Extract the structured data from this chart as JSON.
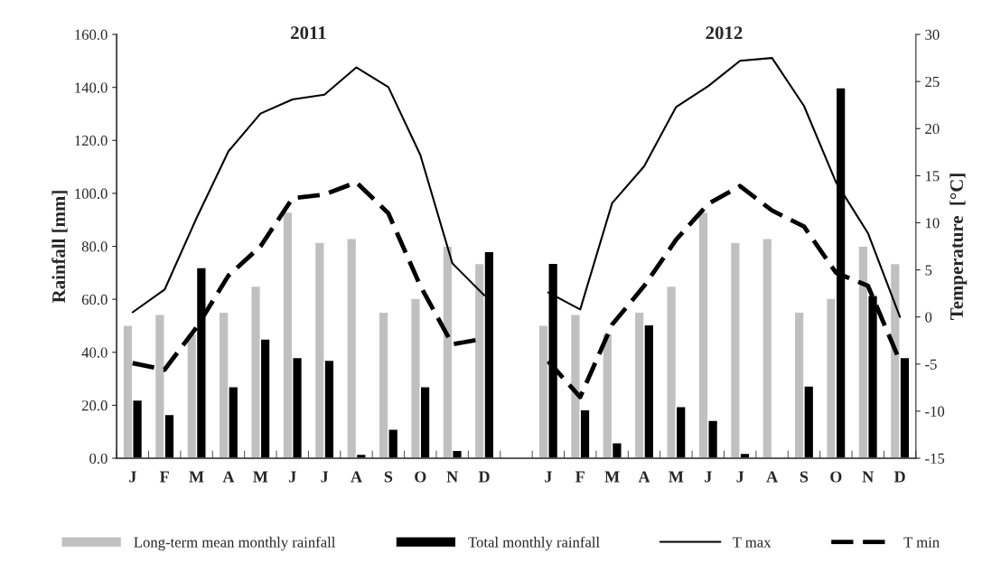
{
  "chart_data": {
    "type": "bar",
    "categories": [
      "J",
      "F",
      "M",
      "A",
      "M",
      "J",
      "J",
      "A",
      "S",
      "O",
      "N",
      "D",
      null,
      "J",
      "F",
      "M",
      "A",
      "M",
      "J",
      "J",
      "A",
      "S",
      "O",
      "N",
      "D"
    ],
    "ylabel": "Rainfall [mm]",
    "y2label": "Temperature  [°C]",
    "annotations": [
      "2011",
      "2012"
    ],
    "ylim": [
      0,
      160
    ],
    "yticks": [
      {
        "value": 0,
        "label": "0.0"
      },
      {
        "value": 20,
        "label": "20.0"
      },
      {
        "value": 40,
        "label": "40.0"
      },
      {
        "value": 60,
        "label": "60.0"
      },
      {
        "value": 80,
        "label": "80.0"
      },
      {
        "value": 100,
        "label": "100.0"
      },
      {
        "value": 120,
        "label": "120.0"
      },
      {
        "value": 140,
        "label": "140.0"
      },
      {
        "value": 160,
        "label": "160.0"
      }
    ],
    "y2lim": [
      -15,
      30
    ],
    "y2ticks": [
      -15,
      -10,
      -5,
      0,
      5,
      10,
      15,
      20,
      25,
      30
    ],
    "grid": false,
    "legend": "bottom",
    "series": [
      {
        "name": "Long-term mean monthly rainfall",
        "color": "#c0c0c0",
        "values": [
          50.2,
          54.3,
          47,
          55.2,
          65.0,
          93.0,
          81.5,
          83.0,
          55.2,
          60.4,
          80.1,
          73.5,
          null,
          50.2,
          54.3,
          47,
          55.2,
          65.0,
          93.0,
          81.5,
          83.0,
          55.2,
          60.4,
          80.1,
          73.5
        ]
      },
      {
        "name": "Total monthly rainfall",
        "color": "#000000",
        "values": [
          22,
          16.5,
          72,
          27,
          45,
          38,
          37,
          1.5,
          11,
          27,
          3,
          78,
          null,
          73.6,
          18.3,
          5.9,
          50.4,
          19.5,
          14.3,
          1.9,
          null,
          27.3,
          139.9,
          61.5,
          38.0
        ]
      },
      {
        "name": "T max",
        "type": "line",
        "axis": "y2",
        "color": "#000000",
        "line_style": "solid",
        "values": [
          0.5,
          2.9,
          10.5,
          17.6,
          21.6,
          23.1,
          23.6,
          26.5,
          24.4,
          17.2,
          5.7,
          2.3,
          null,
          2.6,
          0.8,
          12.1,
          16.0,
          22.3,
          24.5,
          27.2,
          27.5,
          22.4,
          14.3,
          8.9,
          0.0
        ]
      },
      {
        "name": "T min",
        "type": "line",
        "axis": "y2",
        "color": "#000000",
        "line_style": "dashed",
        "values": [
          -4.9,
          -5.6,
          -1.1,
          4.4,
          7.5,
          12.6,
          13.0,
          14.3,
          11.0,
          3.3,
          -2.9,
          -2.3,
          null,
          -4.7,
          -8.5,
          -0.8,
          3.3,
          8.2,
          12.0,
          13.9,
          11.3,
          9.6,
          4.7,
          3.3,
          -4.7
        ]
      }
    ]
  }
}
